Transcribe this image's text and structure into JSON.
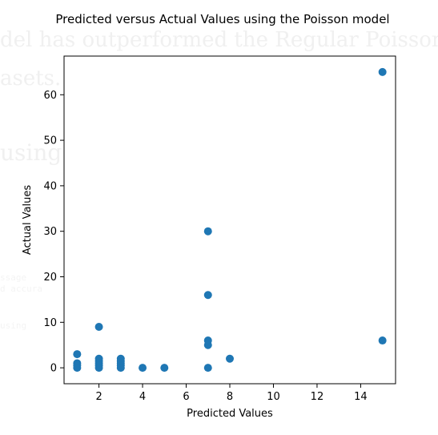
{
  "background_text": {
    "line1": "del has outperformed the Regular Poisson",
    "line2": "asets.",
    "line3": "using",
    "line4": "ssage",
    "line5": "d accura",
    "line6": "using"
  },
  "chart_data": {
    "type": "scatter",
    "title": "Predicted versus Actual Values using the Poisson model",
    "xlabel": "Predicted Values",
    "ylabel": "Actual Values",
    "xlim": [
      0.4,
      15.6
    ],
    "ylim": [
      -3.5,
      68.5
    ],
    "xticks": [
      2,
      4,
      6,
      8,
      10,
      12,
      14
    ],
    "yticks": [
      0,
      10,
      20,
      30,
      40,
      50,
      60
    ],
    "marker_color": "#1f77b4",
    "grid": false,
    "points": [
      {
        "x": 1,
        "y": 3
      },
      {
        "x": 1,
        "y": 1
      },
      {
        "x": 1,
        "y": 0.5
      },
      {
        "x": 1,
        "y": 0
      },
      {
        "x": 2,
        "y": 9
      },
      {
        "x": 2,
        "y": 2
      },
      {
        "x": 2,
        "y": 1.5
      },
      {
        "x": 2,
        "y": 1
      },
      {
        "x": 2,
        "y": 0.5
      },
      {
        "x": 2,
        "y": 0
      },
      {
        "x": 3,
        "y": 2
      },
      {
        "x": 3,
        "y": 1.5
      },
      {
        "x": 3,
        "y": 1
      },
      {
        "x": 3,
        "y": 0.5
      },
      {
        "x": 3,
        "y": 0
      },
      {
        "x": 4,
        "y": 0
      },
      {
        "x": 5,
        "y": 0
      },
      {
        "x": 7,
        "y": 30
      },
      {
        "x": 7,
        "y": 16
      },
      {
        "x": 7,
        "y": 6
      },
      {
        "x": 7,
        "y": 5
      },
      {
        "x": 7,
        "y": 0
      },
      {
        "x": 8,
        "y": 2
      },
      {
        "x": 15,
        "y": 65
      },
      {
        "x": 15,
        "y": 6
      }
    ]
  }
}
